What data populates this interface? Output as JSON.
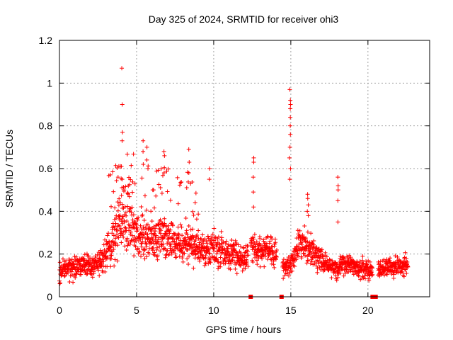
{
  "chart_data": {
    "type": "scatter",
    "title": "Day 325 of 2024, SRMTID for receiver ohi3",
    "xlabel": "GPS time / hours",
    "ylabel": "SRMTID / TECUs",
    "xlim": [
      0,
      24
    ],
    "ylim": [
      0,
      1.2
    ],
    "xticks": [
      0,
      5,
      10,
      15,
      20
    ],
    "xtick_labels": [
      "0",
      "5",
      "10",
      "15",
      "20"
    ],
    "yticks": [
      0,
      0.2,
      0.4,
      0.6,
      0.8,
      1,
      1.2
    ],
    "ytick_labels": [
      "0",
      "0.2",
      "0.4",
      "0.6",
      "0.8",
      "1",
      "1.2"
    ],
    "grid": true,
    "marker": "+",
    "color": "#ff0000",
    "baseline_markers": {
      "description": "small squares on x-axis marking data gaps",
      "x": [
        12.4,
        14.4,
        20.3,
        20.5
      ]
    },
    "envelope": {
      "description": "approximate median and spread of the dense point cloud",
      "x": [
        0.0,
        0.5,
        1.0,
        1.5,
        2.0,
        2.5,
        3.0,
        3.5,
        4.0,
        4.5,
        5.0,
        5.5,
        6.0,
        6.5,
        7.0,
        7.5,
        8.0,
        8.5,
        9.0,
        9.5,
        10.0,
        10.5,
        11.0,
        11.5,
        12.0,
        12.5,
        13.0,
        13.5,
        14.0,
        14.5,
        15.0,
        15.5,
        16.0,
        16.5,
        17.0,
        17.5,
        18.0,
        18.5,
        19.0,
        19.5,
        20.0,
        20.7,
        21.0,
        21.5,
        22.0,
        22.6
      ],
      "median": [
        0.12,
        0.14,
        0.13,
        0.15,
        0.14,
        0.16,
        0.2,
        0.28,
        0.35,
        0.38,
        0.3,
        0.28,
        0.27,
        0.28,
        0.27,
        0.26,
        0.25,
        0.24,
        0.22,
        0.21,
        0.22,
        0.22,
        0.2,
        0.19,
        0.18,
        0.24,
        0.22,
        0.21,
        0.2,
        0.14,
        0.15,
        0.25,
        0.23,
        0.2,
        0.17,
        0.14,
        0.13,
        0.16,
        0.15,
        0.13,
        0.12,
        0.13,
        0.14,
        0.14,
        0.14,
        0.16
      ],
      "spread": [
        0.05,
        0.05,
        0.05,
        0.05,
        0.05,
        0.05,
        0.07,
        0.1,
        0.12,
        0.12,
        0.1,
        0.1,
        0.09,
        0.09,
        0.09,
        0.09,
        0.08,
        0.08,
        0.07,
        0.07,
        0.07,
        0.07,
        0.07,
        0.07,
        0.06,
        0.06,
        0.06,
        0.06,
        0.06,
        0.04,
        0.05,
        0.07,
        0.07,
        0.06,
        0.05,
        0.04,
        0.04,
        0.05,
        0.04,
        0.04,
        0.04,
        0.04,
        0.04,
        0.04,
        0.04,
        0.04
      ]
    },
    "spikes": [
      {
        "x": 4.05,
        "values": [
          1.07,
          0.9,
          0.77,
          0.73,
          0.61,
          0.55
        ]
      },
      {
        "x": 5.4,
        "values": [
          0.73,
          0.68,
          0.62
        ]
      },
      {
        "x": 5.7,
        "values": [
          0.7,
          0.64,
          0.6
        ]
      },
      {
        "x": 6.8,
        "values": [
          0.68,
          0.66,
          0.58
        ]
      },
      {
        "x": 8.4,
        "values": [
          0.69,
          0.63,
          0.58
        ]
      },
      {
        "x": 9.7,
        "values": [
          0.6,
          0.55
        ]
      },
      {
        "x": 12.6,
        "values": [
          0.65,
          0.63,
          0.56,
          0.49,
          0.42
        ]
      },
      {
        "x": 14.95,
        "values": [
          0.97,
          0.92,
          0.9,
          0.88,
          0.84,
          0.8,
          0.76,
          0.7,
          0.65,
          0.6,
          0.55
        ]
      },
      {
        "x": 16.1,
        "values": [
          0.48,
          0.46,
          0.43,
          0.4,
          0.38
        ]
      },
      {
        "x": 18.05,
        "values": [
          0.56,
          0.52,
          0.5,
          0.45,
          0.35
        ]
      }
    ]
  }
}
